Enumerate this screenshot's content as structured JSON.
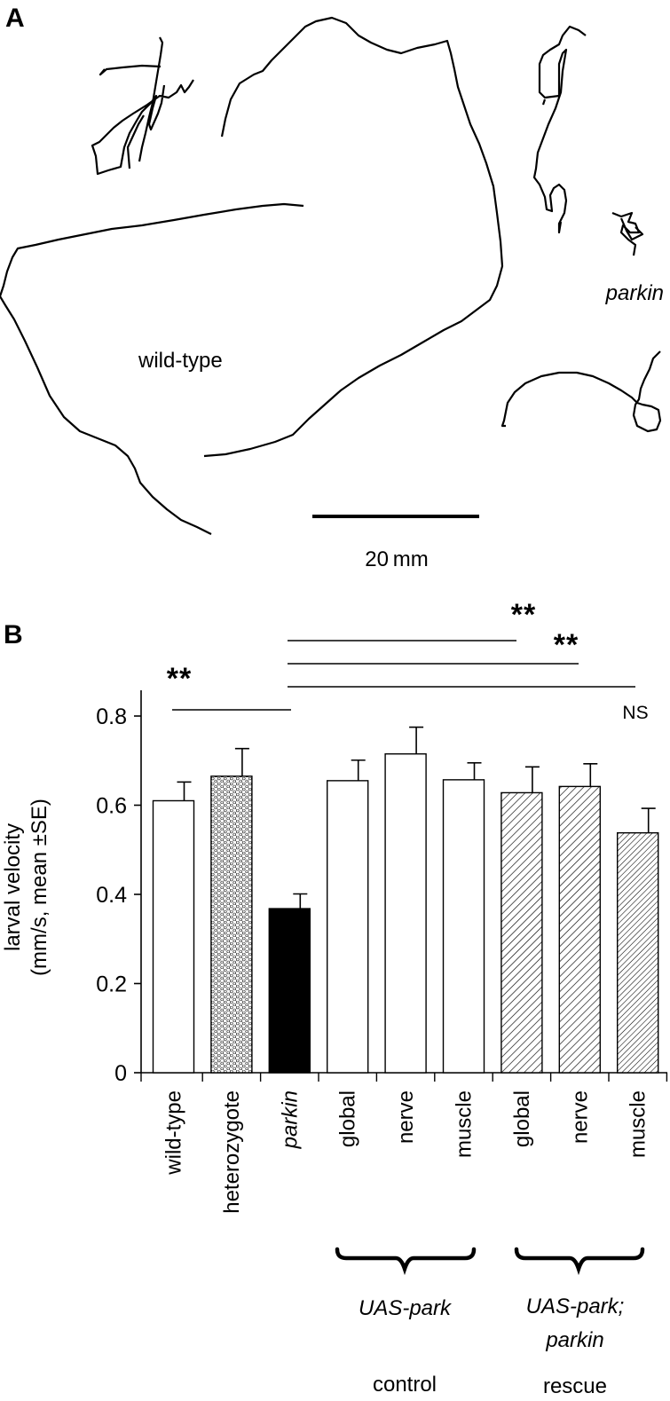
{
  "panel_a": {
    "label": "A",
    "wildtype_label": "wild-type",
    "parkin_label": "parkin",
    "scalebar_label": "20 mm"
  },
  "panel_b": {
    "label": "B",
    "significance": [
      "**",
      "**",
      "**",
      "NS"
    ],
    "groups": [
      {
        "name": "UAS-park",
        "sub": "",
        "footer": "control"
      },
      {
        "name": "UAS-park;",
        "sub": "parkin",
        "footer": "rescue"
      }
    ]
  },
  "chart_data": {
    "type": "bar",
    "ylabel_line1": "larval velocity",
    "ylabel_line2": "(mm/s, mean ±SE)",
    "ylim": [
      0,
      0.85
    ],
    "yticks": [
      "0",
      "0.2",
      "0.4",
      "0.6",
      "0.8"
    ],
    "categories": [
      "wild-type",
      "heterozygote",
      "parkin",
      "global",
      "nerve",
      "muscle",
      "global",
      "nerve",
      "muscle"
    ],
    "values": [
      0.61,
      0.665,
      0.368,
      0.655,
      0.715,
      0.657,
      0.628,
      0.642,
      0.538
    ],
    "errors": [
      0.042,
      0.062,
      0.033,
      0.046,
      0.06,
      0.038,
      0.058,
      0.051,
      0.055
    ],
    "fills": [
      "white",
      "hexagon",
      "black",
      "white",
      "white",
      "white",
      "hatch",
      "hatch",
      "hatch-dense"
    ],
    "italic_categories": [
      false,
      false,
      true,
      false,
      false,
      false,
      false,
      false,
      false
    ]
  }
}
